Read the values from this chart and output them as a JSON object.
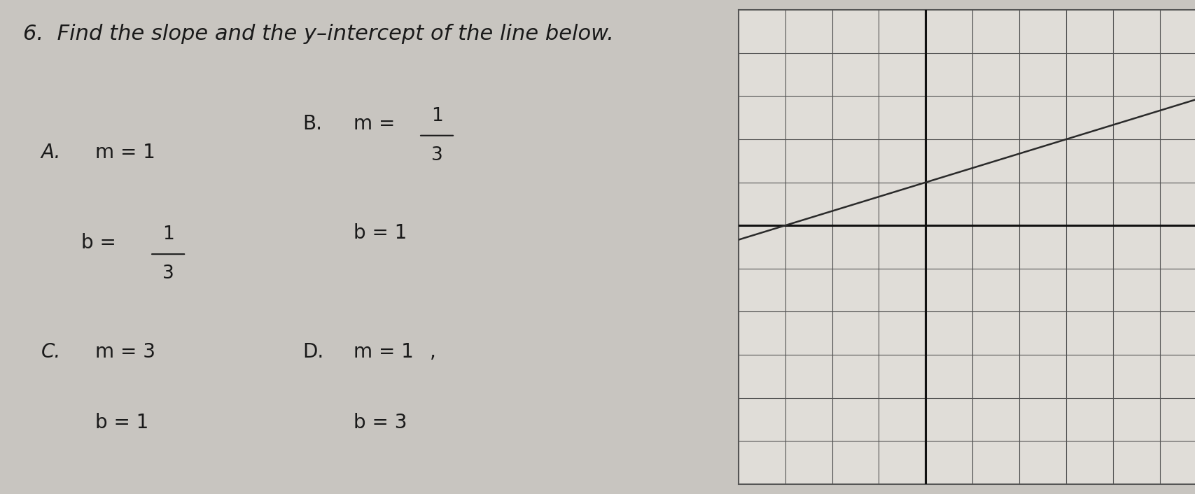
{
  "title": "6.  Find the slope and the y–intercept of the line below.",
  "title_fontsize": 22,
  "bg_color": "#c8c5c0",
  "text_color": "#1a1a1a",
  "graph": {
    "xlim": [
      -4,
      6
    ],
    "ylim": [
      -6,
      5
    ],
    "slope": 0.3333,
    "intercept": 1,
    "line_color": "#2a2a2a",
    "grid_color": "#555555",
    "axis_color": "#111111",
    "bg_color": "#e0ddd8",
    "grid_lw": 0.8,
    "axis_lw": 2.2
  }
}
